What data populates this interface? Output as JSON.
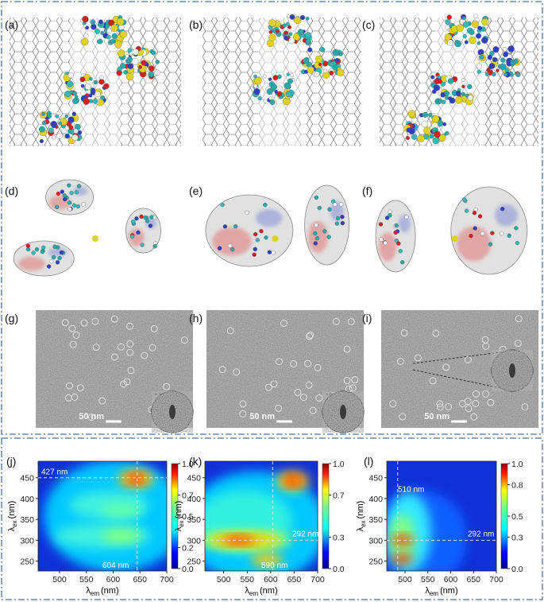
{
  "row1": {
    "labels": [
      "(a)",
      "(b)",
      "(c)"
    ]
  },
  "row2": {
    "labels": [
      "(d)",
      "(e)",
      "(f)"
    ]
  },
  "row3": {
    "labels": [
      "(g)",
      "(h)",
      "(i)"
    ],
    "scale_bars": [
      "50 nm",
      "50 nm",
      "50 nm"
    ]
  },
  "maps": [
    {
      "label": "(j)",
      "x_label": {
        "symbol": "λ",
        "subscript": "em",
        "unit": "(nm)"
      },
      "y_label": {
        "symbol": "λ",
        "subscript": "ex",
        "unit": "(nm)"
      },
      "xticks": [
        500,
        550,
        600,
        650,
        700
      ],
      "yticks": [
        450,
        400,
        350,
        300,
        250
      ],
      "colorbar_ticks": [
        "1.0",
        "0.7",
        "0.5",
        "0.2",
        "0.0"
      ],
      "annotations": [
        "427 nm",
        "604 nm"
      ]
    },
    {
      "label": "(k)",
      "x_label": {
        "symbol": "λ",
        "subscript": "em",
        "unit": "(nm)"
      },
      "y_label": {
        "symbol": "λ",
        "subscript": "ex",
        "unit": "(nm)"
      },
      "xticks": [
        500,
        550,
        600,
        650,
        700
      ],
      "yticks": [
        450,
        400,
        350,
        300,
        250
      ],
      "colorbar_ticks": [
        "1.0",
        "0.7",
        "0.3",
        "0.0"
      ],
      "annotations": [
        "292 nm",
        "590 nm"
      ]
    },
    {
      "label": "(l)",
      "x_label": {
        "symbol": "λ",
        "subscript": "em",
        "unit": "(nm)"
      },
      "y_label": {
        "symbol": "λ",
        "subscript": "ex",
        "unit": "(nm)"
      },
      "xticks": [
        500,
        550,
        600,
        650,
        700
      ],
      "yticks": [
        450,
        400,
        350,
        300,
        250
      ],
      "colorbar_ticks": [
        "1.0",
        "0.8",
        "0.5",
        "0.3",
        "0.0"
      ],
      "annotations": [
        "510 nm",
        "292 nm"
      ]
    }
  ]
}
